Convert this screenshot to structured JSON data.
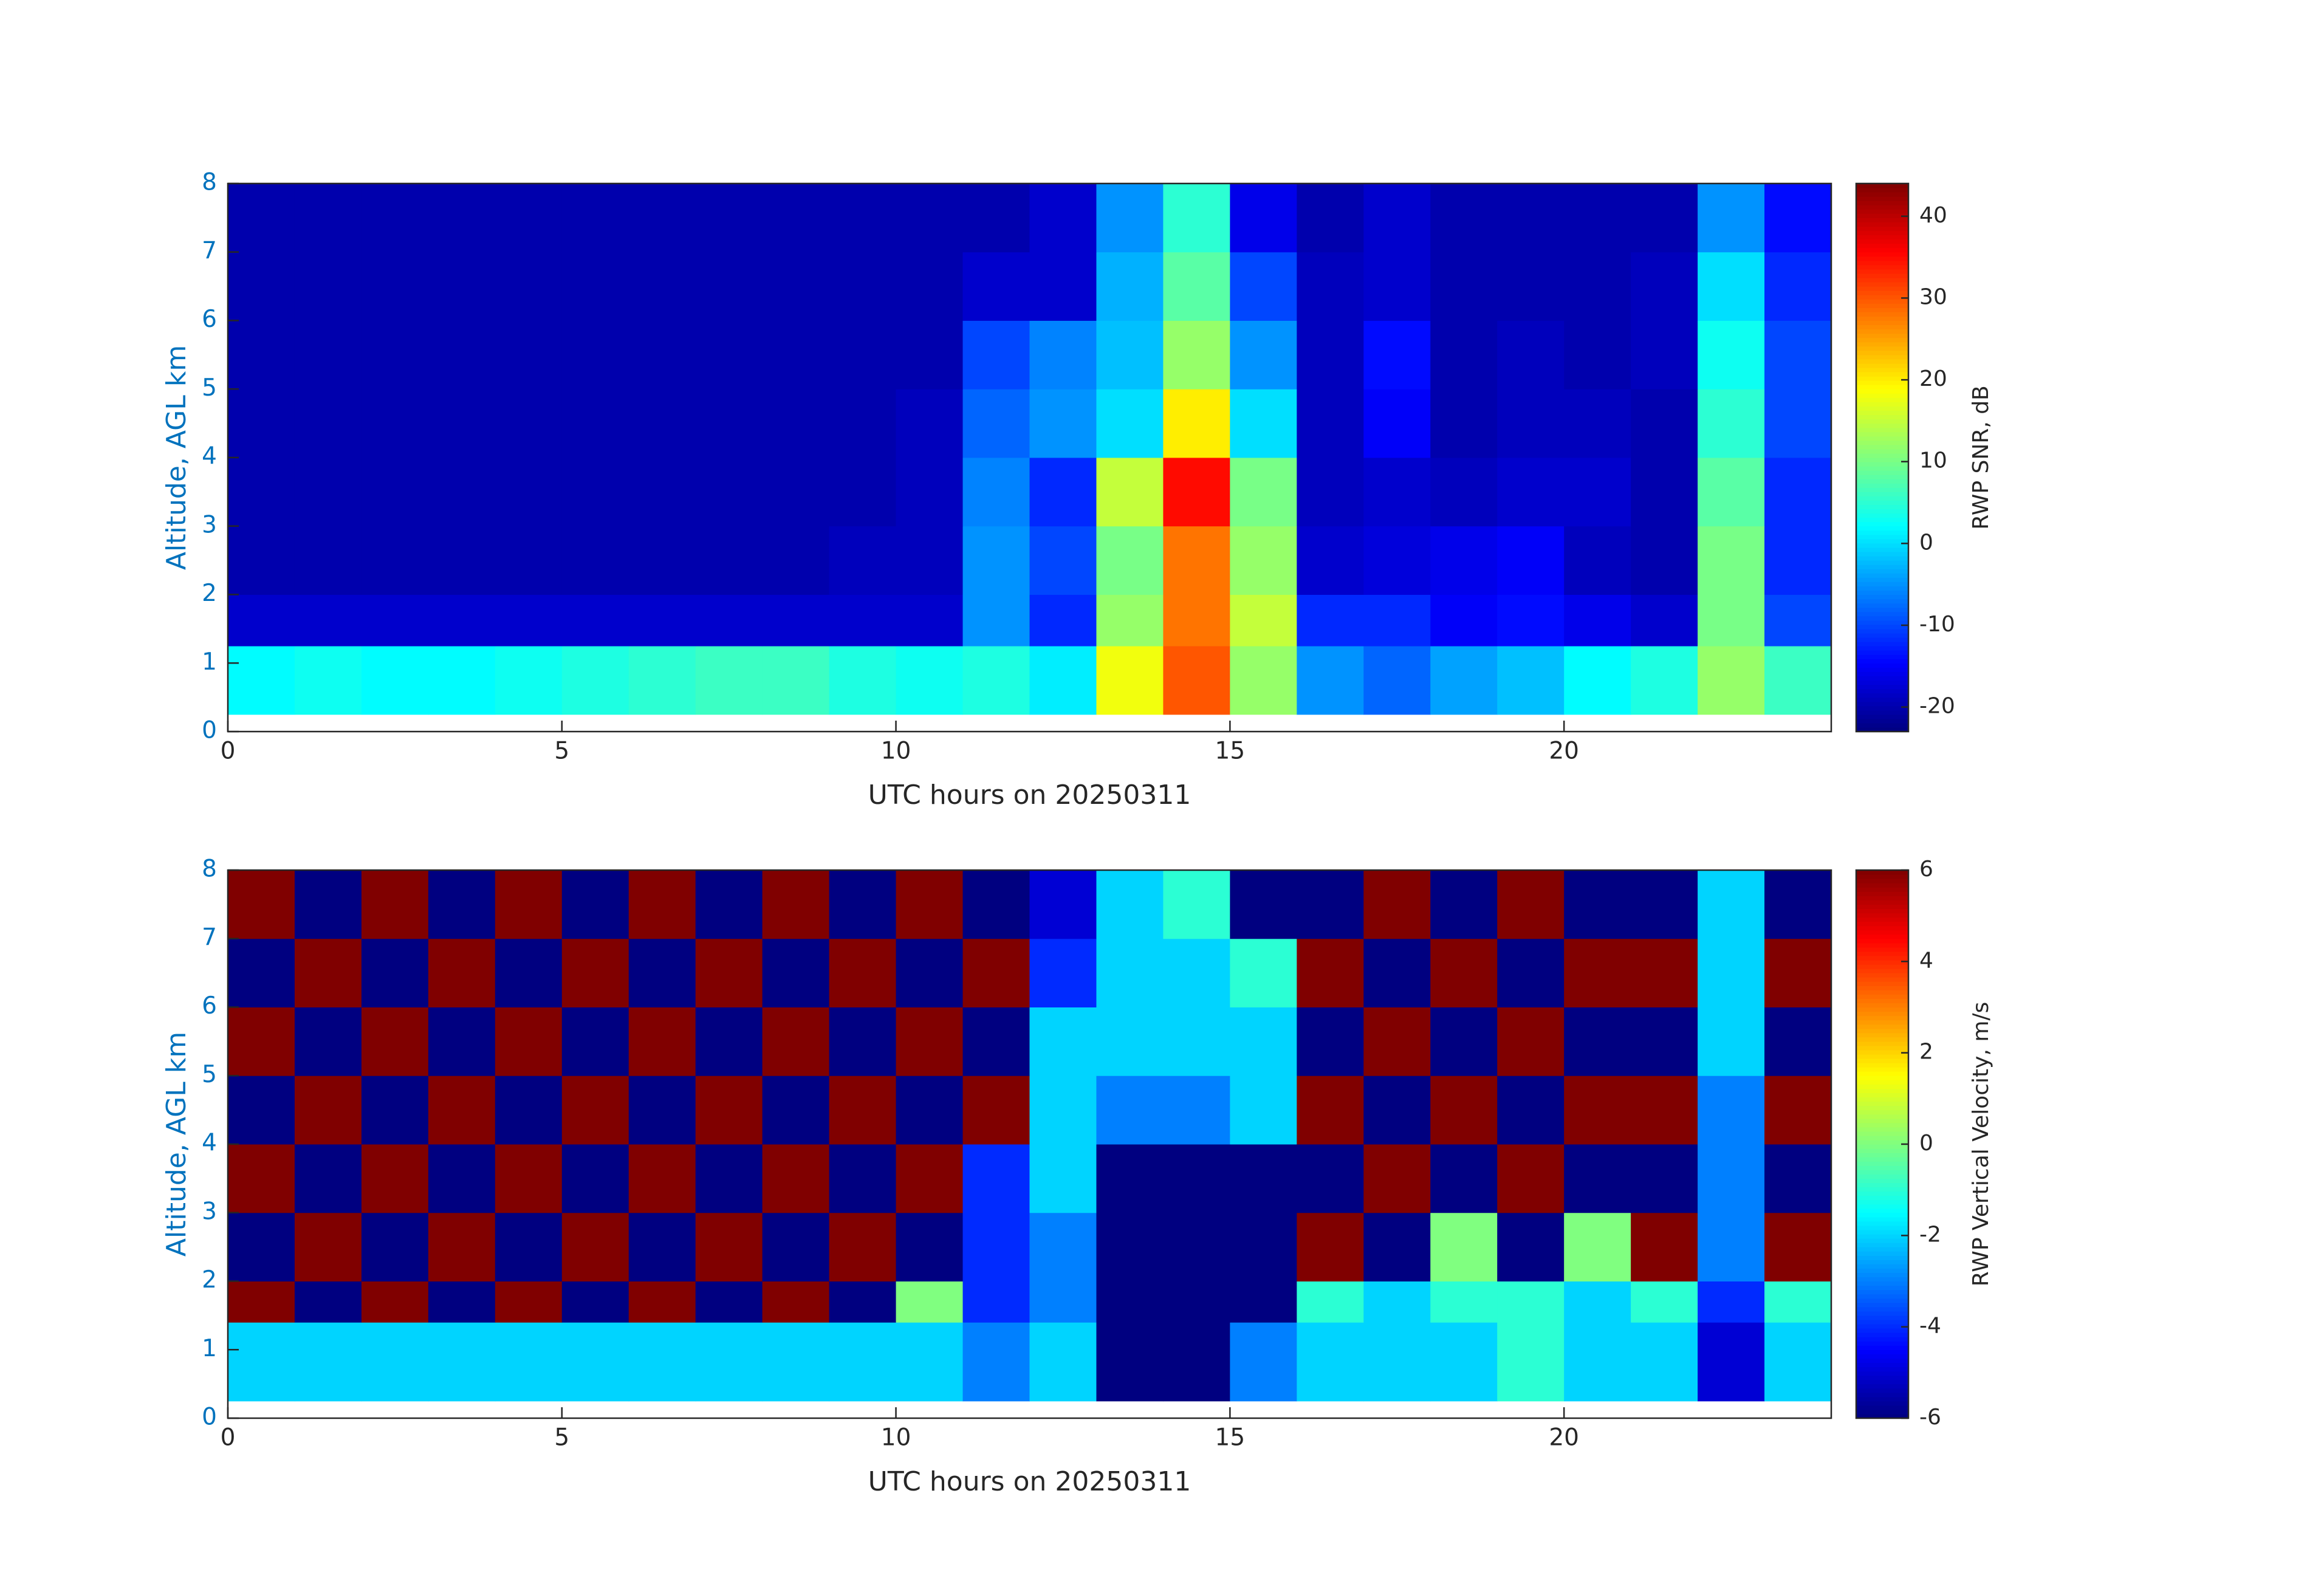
{
  "chart_data": [
    {
      "type": "heatmap",
      "colormap": "jet",
      "xlabel": "UTC hours on 20250311",
      "ylabel": "Altitude, AGL km",
      "colorbar_label": "RWP SNR, dB",
      "xlim": [
        0,
        24
      ],
      "xticks": [
        0,
        5,
        10,
        15,
        20
      ],
      "ylim": [
        0,
        8
      ],
      "yticks": [
        0,
        1,
        2,
        3,
        4,
        5,
        6,
        7,
        8
      ],
      "clim": [
        -23,
        44
      ],
      "cticks": [
        -20,
        -10,
        0,
        10,
        20,
        30,
        40
      ],
      "x_edges": [
        0,
        1,
        2,
        3,
        4,
        5,
        6,
        7,
        8,
        9,
        10,
        11,
        12,
        13,
        14,
        15,
        16,
        17,
        18,
        19,
        20,
        21,
        22,
        23,
        24
      ],
      "y_edges": [
        0.25,
        1.25,
        2,
        3,
        4,
        5,
        6,
        7,
        8
      ],
      "values": [
        [
          2,
          3,
          2,
          2,
          3,
          4,
          5,
          6,
          6,
          4,
          3,
          4,
          1,
          18,
          30,
          12,
          -5,
          -8,
          -4,
          -2,
          2,
          4,
          12,
          6
        ],
        [
          -18,
          -18,
          -18,
          -18,
          -18,
          -18,
          -18,
          -18,
          -18,
          -18,
          -18,
          -5,
          -12,
          12,
          28,
          15,
          -12,
          -12,
          -15,
          -14,
          -16,
          -18,
          10,
          -10
        ],
        [
          -20,
          -20,
          -20,
          -20,
          -20,
          -20,
          -20,
          -20,
          -20,
          -19,
          -19,
          -5,
          -10,
          10,
          28,
          12,
          -18,
          -17,
          -16,
          -15,
          -19,
          -20,
          10,
          -12
        ],
        [
          -20,
          -20,
          -20,
          -20,
          -20,
          -20,
          -20,
          -20,
          -20,
          -20,
          -19,
          -6,
          -12,
          15,
          35,
          10,
          -19,
          -18,
          -19,
          -18,
          -18,
          -20,
          8,
          -12
        ],
        [
          -20,
          -20,
          -20,
          -20,
          -20,
          -20,
          -20,
          -20,
          -20,
          -20,
          -19,
          -8,
          -5,
          0,
          20,
          0,
          -19,
          -15,
          -20,
          -19,
          -19,
          -20,
          5,
          -10
        ],
        [
          -20,
          -20,
          -20,
          -20,
          -20,
          -20,
          -20,
          -20,
          -20,
          -20,
          -20,
          -10,
          -6,
          -2,
          12,
          -5,
          -19,
          -14,
          -20,
          -19,
          -20,
          -19,
          3,
          -10
        ],
        [
          -20,
          -20,
          -20,
          -20,
          -20,
          -20,
          -20,
          -20,
          -20,
          -20,
          -20,
          -18,
          -18,
          -3,
          8,
          -10,
          -19,
          -18,
          -20,
          -20,
          -20,
          -19,
          0,
          -12
        ],
        [
          -20,
          -20,
          -20,
          -20,
          -20,
          -20,
          -20,
          -20,
          -20,
          -20,
          -20,
          -20,
          -18,
          -5,
          5,
          -16,
          -20,
          -18,
          -20,
          -20,
          -20,
          -20,
          -5,
          -14
        ]
      ]
    },
    {
      "type": "heatmap",
      "colormap": "jet",
      "xlabel": "UTC hours on 20250311",
      "ylabel": "Altitude, AGL km",
      "colorbar_label": "RWP Vertical Velocity, m/s",
      "xlim": [
        0,
        24
      ],
      "xticks": [
        0,
        5,
        10,
        15,
        20
      ],
      "ylim": [
        0,
        8
      ],
      "yticks": [
        0,
        1,
        2,
        3,
        4,
        5,
        6,
        7,
        8
      ],
      "clim": [
        -6,
        6
      ],
      "cticks": [
        -6,
        -4,
        -2,
        0,
        2,
        4,
        6
      ],
      "x_edges": [
        0,
        1,
        2,
        3,
        4,
        5,
        6,
        7,
        8,
        9,
        10,
        11,
        12,
        13,
        14,
        15,
        16,
        17,
        18,
        19,
        20,
        21,
        22,
        23,
        24
      ],
      "y_edges": [
        0.25,
        1.4,
        2,
        3,
        4,
        5,
        6,
        7,
        8
      ],
      "values": [
        [
          -2,
          -2,
          -2,
          -2,
          -2,
          -2,
          -2,
          -2,
          -2,
          -2,
          -2,
          -3,
          -2,
          -6,
          -6,
          -3,
          -2,
          -2,
          -2,
          -1,
          -2,
          -2,
          -5,
          -2
        ],
        [
          6,
          -6,
          6,
          -6,
          6,
          -6,
          6,
          -6,
          6,
          -6,
          0,
          -4,
          -3,
          -6,
          -6,
          -6,
          -1,
          -2,
          -1,
          -1,
          -2,
          -1,
          -4,
          -1
        ],
        [
          -6,
          6,
          -6,
          6,
          -6,
          6,
          -6,
          6,
          -6,
          6,
          -6,
          -4,
          -3,
          -6,
          -6,
          -6,
          6,
          -6,
          0,
          -6,
          0,
          6,
          -3,
          6
        ],
        [
          6,
          -6,
          6,
          -6,
          6,
          -6,
          6,
          -6,
          6,
          -6,
          6,
          -4,
          -2,
          -6,
          -6,
          -6,
          -6,
          6,
          -6,
          6,
          -6,
          -6,
          -3,
          -6
        ],
        [
          -6,
          6,
          -6,
          6,
          -6,
          6,
          -6,
          6,
          -6,
          6,
          -6,
          6,
          -2,
          -3,
          -3,
          -2,
          6,
          -6,
          6,
          -6,
          6,
          6,
          -3,
          6
        ],
        [
          6,
          -6,
          6,
          -6,
          6,
          -6,
          6,
          -6,
          6,
          -6,
          6,
          -6,
          -2,
          -2,
          -2,
          -2,
          -6,
          6,
          -6,
          6,
          -6,
          -6,
          -2,
          -6
        ],
        [
          -6,
          6,
          -6,
          6,
          -6,
          6,
          -6,
          6,
          -6,
          6,
          -6,
          6,
          -4,
          -2,
          -2,
          -1,
          6,
          -6,
          6,
          -6,
          6,
          6,
          -2,
          6
        ],
        [
          6,
          -6,
          6,
          -6,
          6,
          -6,
          6,
          -6,
          6,
          -6,
          6,
          -6,
          -5,
          -2,
          -1,
          -6,
          -6,
          6,
          -6,
          6,
          -6,
          -6,
          -2,
          -6
        ]
      ]
    }
  ]
}
